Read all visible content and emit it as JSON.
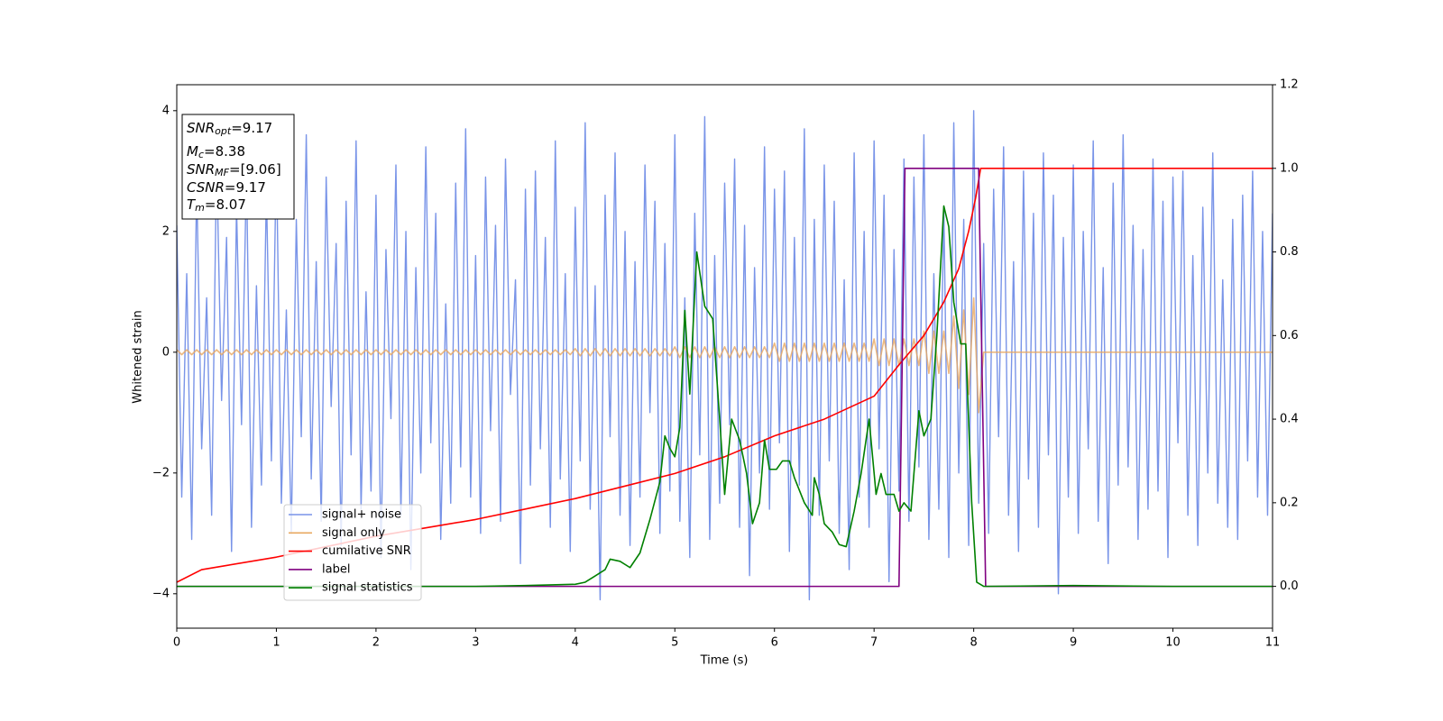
{
  "chart_data": {
    "type": "line",
    "xlabel": "Time (s)",
    "ylabel": "Whitened strain",
    "xlim": [
      0,
      11
    ],
    "xticks": [
      0,
      1,
      2,
      3,
      4,
      5,
      6,
      7,
      8,
      9,
      10,
      11
    ],
    "ylim": [
      -4.57,
      4.43
    ],
    "yticks": [
      {
        "value": -4,
        "label": "−4"
      },
      {
        "value": -2,
        "label": "−2"
      },
      0,
      2,
      4
    ],
    "y2lim": [
      -0.1,
      1.2
    ],
    "y2ticks": [
      {
        "value": 0,
        "label": "0.0"
      },
      {
        "value": 0.2,
        "label": "0.2"
      },
      {
        "value": 0.4,
        "label": "0.4"
      },
      {
        "value": 0.6,
        "label": "0.6"
      },
      {
        "value": 0.8,
        "label": "0.8"
      },
      {
        "value": 1.0,
        "label": "1.0"
      },
      {
        "value": 1.2,
        "label": "1.2"
      }
    ],
    "legend_loc": "lower left",
    "annotations": [
      {
        "symbol": "SNR",
        "sub": "opt",
        "text": "=9.17"
      },
      {
        "symbol": "M",
        "sub": "c",
        "text": "=8.38"
      },
      {
        "symbol": "SNR",
        "sub": "MF",
        "text": "=[9.06]"
      },
      {
        "symbol": "CSNR",
        "sub": null,
        "text": "=9.17"
      },
      {
        "symbol": "T",
        "sub": "m",
        "text": "=8.07"
      }
    ],
    "x": [
      0,
      0.05,
      0.1,
      0.15,
      0.2,
      0.25,
      0.3,
      0.35,
      0.4,
      0.45,
      0.5,
      0.55,
      0.6,
      0.65,
      0.7,
      0.75,
      0.8,
      0.85,
      0.9,
      0.95,
      1,
      1.05,
      1.1,
      1.15,
      1.2,
      1.25,
      1.3,
      1.35,
      1.4,
      1.45,
      1.5,
      1.55,
      1.6,
      1.65,
      1.7,
      1.75,
      1.8,
      1.85,
      1.9,
      1.95,
      2,
      2.05,
      2.1,
      2.15,
      2.2,
      2.25,
      2.3,
      2.35,
      2.4,
      2.45,
      2.5,
      2.55,
      2.6,
      2.65,
      2.7,
      2.75,
      2.8,
      2.85,
      2.9,
      2.95,
      3,
      3.05,
      3.1,
      3.15,
      3.2,
      3.25,
      3.3,
      3.35,
      3.4,
      3.45,
      3.5,
      3.55,
      3.6,
      3.65,
      3.7,
      3.75,
      3.8,
      3.85,
      3.9,
      3.95,
      4,
      4.05,
      4.1,
      4.15,
      4.2,
      4.25,
      4.3,
      4.35,
      4.4,
      4.45,
      4.5,
      4.55,
      4.6,
      4.65,
      4.7,
      4.75,
      4.8,
      4.85,
      4.9,
      4.95,
      5,
      5.05,
      5.1,
      5.15,
      5.2,
      5.25,
      5.3,
      5.35,
      5.4,
      5.45,
      5.5,
      5.55,
      5.6,
      5.65,
      5.7,
      5.75,
      5.8,
      5.85,
      5.9,
      5.95,
      6,
      6.05,
      6.1,
      6.15,
      6.2,
      6.25,
      6.3,
      6.35,
      6.4,
      6.45,
      6.5,
      6.55,
      6.6,
      6.65,
      6.7,
      6.75,
      6.8,
      6.85,
      6.9,
      6.95,
      7,
      7.05,
      7.1,
      7.15,
      7.2,
      7.25,
      7.3,
      7.35,
      7.4,
      7.45,
      7.5,
      7.55,
      7.6,
      7.65,
      7.7,
      7.75,
      7.8,
      7.85,
      7.9,
      7.95,
      8,
      8.05,
      8.1,
      8.15,
      8.2,
      8.25,
      8.3,
      8.35,
      8.4,
      8.45,
      8.5,
      8.55,
      8.6,
      8.65,
      8.7,
      8.75,
      8.8,
      8.85,
      8.9,
      8.95,
      9,
      9.05,
      9.1,
      9.15,
      9.2,
      9.25,
      9.3,
      9.35,
      9.4,
      9.45,
      9.5,
      9.55,
      9.6,
      9.65,
      9.7,
      9.75,
      9.8,
      9.85,
      9.9,
      9.95,
      10,
      10.05,
      10.1,
      10.15,
      10.2,
      10.25,
      10.3,
      10.35,
      10.4,
      10.45,
      10.5,
      10.55,
      10.6,
      10.65,
      10.7,
      10.75,
      10.8,
      10.85,
      10.9,
      10.95,
      11
    ],
    "series": [
      {
        "name": "signal+ noise",
        "color": "#7994e8",
        "values": [
          2.1,
          -2.4,
          1.3,
          -3.1,
          2.8,
          -1.6,
          0.9,
          -2.7,
          3.2,
          -0.8,
          1.9,
          -3.3,
          2.4,
          -1.2,
          3.0,
          -2.9,
          1.1,
          -2.2,
          2.7,
          -1.8,
          3.3,
          -2.5,
          0.7,
          -3.0,
          2.2,
          -1.4,
          3.6,
          -2.1,
          1.5,
          -2.8,
          2.9,
          -0.9,
          1.8,
          -3.2,
          2.5,
          -1.7,
          3.5,
          -2.6,
          1.0,
          -2.3,
          2.6,
          -3.4,
          1.7,
          -1.1,
          3.1,
          -2.7,
          2.0,
          -3.6,
          1.4,
          -2.0,
          3.4,
          -1.5,
          2.3,
          -3.1,
          0.8,
          -2.5,
          2.8,
          -1.9,
          3.7,
          -2.4,
          1.6,
          -3.0,
          2.9,
          -1.3,
          2.1,
          -2.8,
          3.2,
          -0.7,
          1.2,
          -3.5,
          2.7,
          -2.2,
          3.0,
          -1.6,
          1.9,
          -2.9,
          3.5,
          -2.1,
          1.3,
          -3.3,
          2.4,
          -1.8,
          3.8,
          -2.6,
          1.1,
          -4.1,
          2.6,
          -1.4,
          3.3,
          -2.7,
          2.0,
          -3.2,
          1.5,
          -2.4,
          3.1,
          -1.0,
          2.5,
          -3.0,
          1.8,
          -2.3,
          3.6,
          -2.8,
          0.9,
          -3.4,
          2.3,
          -1.7,
          3.9,
          -3.1,
          1.6,
          -2.5,
          2.8,
          -1.2,
          3.2,
          -2.9,
          2.1,
          -3.7,
          1.4,
          -2.0,
          3.4,
          -2.6,
          2.7,
          -1.5,
          3.0,
          -3.3,
          1.9,
          -2.2,
          3.7,
          -4.1,
          2.2,
          -2.7,
          3.1,
          -1.8,
          2.5,
          -3.0,
          1.2,
          -3.6,
          3.3,
          -2.4,
          2.0,
          -2.9,
          3.5,
          -1.6,
          2.6,
          -3.8,
          1.7,
          -2.3,
          3.2,
          -2.8,
          2.9,
          -1.9,
          3.6,
          -3.1,
          1.3,
          -2.6,
          2.4,
          -3.4,
          3.8,
          -2.0,
          2.2,
          -3.2,
          4.0,
          -2.5,
          1.8,
          -3.0,
          2.7,
          -1.4,
          3.4,
          -2.7,
          1.5,
          -3.3,
          3.0,
          -2.1,
          2.3,
          -2.9,
          3.3,
          -1.7,
          2.6,
          -4.0,
          1.9,
          -2.4,
          3.1,
          -3.0,
          2.0,
          -1.6,
          3.5,
          -2.8,
          1.4,
          -3.5,
          2.8,
          -2.2,
          3.6,
          -1.9,
          2.1,
          -3.1,
          1.7,
          -2.6,
          3.2,
          -2.3,
          2.5,
          -3.4,
          2.9,
          -1.5,
          3.0,
          -2.7,
          1.6,
          -3.2,
          2.4,
          -2.0,
          3.3,
          -2.5,
          1.2,
          -2.9,
          2.2,
          -3.1,
          2.6,
          -1.8,
          3.0,
          -2.4,
          2.0,
          -2.7,
          2.3
        ]
      },
      {
        "name": "signal only",
        "color": "#e8a860",
        "values": [
          0.04,
          -0.04,
          0.04,
          -0.04,
          0.04,
          -0.04,
          0.04,
          -0.04,
          0.04,
          -0.04,
          0.04,
          -0.04,
          0.04,
          -0.04,
          0.04,
          -0.04,
          0.04,
          -0.04,
          0.04,
          -0.04,
          0.04,
          -0.04,
          0.04,
          -0.04,
          0.04,
          -0.04,
          0.04,
          -0.04,
          0.04,
          -0.04,
          0.04,
          -0.04,
          0.04,
          -0.04,
          0.04,
          -0.04,
          0.04,
          -0.04,
          0.04,
          -0.04,
          0.04,
          -0.04,
          0.04,
          -0.04,
          0.04,
          -0.04,
          0.04,
          -0.04,
          0.04,
          -0.04,
          0.04,
          -0.04,
          0.04,
          -0.04,
          0.04,
          -0.04,
          0.04,
          -0.04,
          0.04,
          -0.04,
          0.04,
          -0.04,
          0.04,
          -0.04,
          0.04,
          -0.04,
          0.04,
          -0.04,
          0.04,
          -0.04,
          0.04,
          -0.04,
          0.04,
          -0.04,
          0.04,
          -0.04,
          0.04,
          -0.04,
          0.04,
          -0.04,
          0.06,
          -0.06,
          0.06,
          -0.06,
          0.06,
          -0.06,
          0.06,
          -0.06,
          0.06,
          -0.06,
          0.06,
          -0.06,
          0.06,
          -0.06,
          0.06,
          -0.06,
          0.06,
          -0.06,
          0.06,
          -0.06,
          0.09,
          -0.09,
          0.09,
          -0.09,
          0.09,
          -0.09,
          0.09,
          -0.09,
          0.09,
          -0.09,
          0.09,
          -0.09,
          0.09,
          -0.09,
          0.09,
          -0.09,
          0.09,
          -0.09,
          0.09,
          -0.09,
          0.15,
          -0.15,
          0.15,
          -0.15,
          0.15,
          -0.15,
          0.15,
          -0.15,
          0.15,
          -0.15,
          0.15,
          -0.15,
          0.15,
          -0.15,
          0.15,
          -0.15,
          0.15,
          -0.15,
          0.15,
          -0.15,
          0.22,
          -0.22,
          0.22,
          -0.22,
          0.22,
          -0.22,
          0.22,
          -0.22,
          0.22,
          -0.22,
          0.35,
          -0.35,
          0.35,
          -0.35,
          0.35,
          -0.35,
          0.6,
          -0.6,
          0.7,
          -0.7,
          0.9,
          -1.0,
          0,
          0,
          0,
          0,
          0,
          0,
          0,
          0,
          0,
          0,
          0,
          0,
          0,
          0,
          0,
          0,
          0,
          0,
          0,
          0,
          0,
          0,
          0,
          0,
          0,
          0,
          0,
          0,
          0,
          0,
          0,
          0,
          0,
          0,
          0,
          0,
          0,
          0,
          0,
          0,
          0,
          0,
          0,
          0,
          0,
          0,
          0,
          0,
          0,
          0,
          0,
          0,
          0,
          0,
          0,
          0,
          0,
          0,
          0
        ]
      },
      {
        "name": "cumilative SNR",
        "color": "#ff0000",
        "axis": "y2",
        "x": [
          0,
          0.25,
          0.5,
          1,
          1.5,
          2,
          2.5,
          3,
          3.5,
          4,
          4.5,
          5,
          5.5,
          6,
          6.5,
          7,
          7.25,
          7.5,
          7.7,
          7.85,
          7.95,
          8.02,
          8.07,
          9,
          10,
          11
        ],
        "values": [
          0.01,
          0.04,
          0.05,
          0.07,
          0.095,
          0.12,
          0.14,
          0.16,
          0.185,
          0.21,
          0.24,
          0.27,
          0.31,
          0.36,
          0.4,
          0.455,
          0.53,
          0.6,
          0.68,
          0.76,
          0.85,
          0.93,
          1.0,
          1.0,
          1.0,
          1.0
        ]
      },
      {
        "name": "label",
        "color": "#800080",
        "axis": "y2",
        "x": [
          0,
          7.25,
          7.31,
          8.05,
          8.12,
          11
        ],
        "values": [
          0,
          0,
          1,
          1,
          0,
          0
        ]
      },
      {
        "name": "signal statistics",
        "color": "#008000",
        "axis": "y2",
        "x": [
          0,
          1,
          2,
          3,
          3.5,
          4,
          4.1,
          4.2,
          4.3,
          4.35,
          4.45,
          4.55,
          4.65,
          4.75,
          4.85,
          4.9,
          4.95,
          5.0,
          5.05,
          5.1,
          5.15,
          5.22,
          5.3,
          5.38,
          5.45,
          5.5,
          5.57,
          5.65,
          5.72,
          5.78,
          5.85,
          5.9,
          5.95,
          6.02,
          6.08,
          6.15,
          6.2,
          6.3,
          6.38,
          6.4,
          6.45,
          6.5,
          6.58,
          6.65,
          6.72,
          6.8,
          6.87,
          6.95,
          7.02,
          7.07,
          7.12,
          7.2,
          7.25,
          7.3,
          7.37,
          7.45,
          7.5,
          7.57,
          7.63,
          7.7,
          7.75,
          7.8,
          7.87,
          7.92,
          7.98,
          8.03,
          8.1,
          9,
          10,
          11
        ],
        "values": [
          0,
          0,
          0,
          0,
          0.002,
          0.005,
          0.01,
          0.025,
          0.04,
          0.065,
          0.06,
          0.045,
          0.08,
          0.16,
          0.25,
          0.36,
          0.33,
          0.31,
          0.38,
          0.66,
          0.46,
          0.8,
          0.67,
          0.64,
          0.4,
          0.22,
          0.4,
          0.35,
          0.27,
          0.15,
          0.2,
          0.35,
          0.28,
          0.28,
          0.3,
          0.3,
          0.26,
          0.2,
          0.17,
          0.26,
          0.22,
          0.15,
          0.13,
          0.1,
          0.095,
          0.18,
          0.27,
          0.4,
          0.22,
          0.27,
          0.22,
          0.22,
          0.18,
          0.2,
          0.18,
          0.42,
          0.36,
          0.4,
          0.6,
          0.91,
          0.86,
          0.68,
          0.58,
          0.58,
          0.2,
          0.01,
          0,
          0.002,
          0,
          0
        ]
      }
    ]
  }
}
